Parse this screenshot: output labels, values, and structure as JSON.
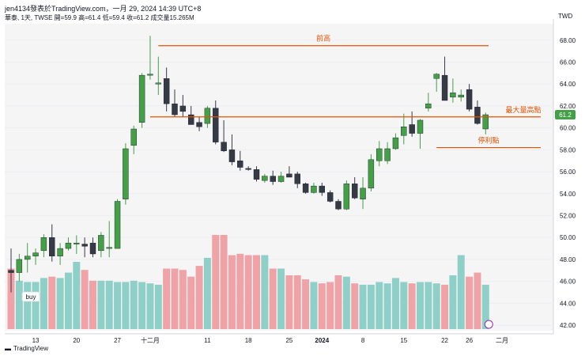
{
  "header": {
    "title": "jen4134發表於TradingView.com，一月 29, 2024 14:39 UTC+8",
    "symbol_line": "華泰, 1天, TWSE  開=59.9  高=61.4  低=59.4  收=61.2  成交量15.265M",
    "currency": "TWD"
  },
  "footer": {
    "brand": "TradingView"
  },
  "chart_data": {
    "type": "candlestick",
    "title": "",
    "symbol": "華泰",
    "interval": "1天",
    "exchange": "TWSE",
    "last": {
      "open": 59.9,
      "high": 61.4,
      "low": 59.4,
      "close": 61.2,
      "volume": "15.265M"
    },
    "ylim": [
      41.5,
      69.5
    ],
    "y_ticks": [
      "42.00",
      "44.00",
      "46.00",
      "48.00",
      "50.00",
      "52.00",
      "54.00",
      "56.00",
      "58.00",
      "60.00",
      "62.00",
      "64.00",
      "66.00",
      "68.00"
    ],
    "x_ticks": [
      "13",
      "20",
      "27",
      "十二月",
      "11",
      "18",
      "25",
      "2024",
      "8",
      "15",
      "22",
      "26",
      "二月"
    ],
    "last_price_label": "61.2",
    "candles": [
      [
        47,
        49,
        45,
        46.8
      ],
      [
        46.8,
        48.5,
        46,
        48
      ],
      [
        48,
        49.5,
        46.8,
        48.3
      ],
      [
        48.3,
        49,
        47.5,
        48.6
      ],
      [
        48.8,
        50.3,
        48.2,
        50
      ],
      [
        50,
        51.2,
        47.8,
        48.3
      ],
      [
        48.3,
        49.5,
        47.5,
        49
      ],
      [
        49,
        50,
        48.8,
        49.5
      ],
      [
        49.4,
        50.2,
        48.5,
        49.5
      ],
      [
        49.4,
        50,
        48.2,
        49.2
      ],
      [
        49.5,
        50,
        48.2,
        48.5
      ],
      [
        48.8,
        50.5,
        48.2,
        50.2
      ],
      [
        49,
        51.5,
        48.2,
        49.1
      ],
      [
        49,
        53.5,
        49,
        53.3
      ],
      [
        53.5,
        58.6,
        53,
        58.1
      ],
      [
        58.4,
        60.2,
        57.6,
        59.9
      ],
      [
        60.5,
        65,
        60,
        64.8
      ],
      [
        64.8,
        68.4,
        64.4,
        64.9
      ],
      [
        64,
        66.5,
        63,
        64.1
      ],
      [
        64.5,
        65.5,
        61.5,
        62.2
      ],
      [
        62.2,
        63.5,
        61,
        61.2
      ],
      [
        62,
        63,
        61,
        61.5
      ],
      [
        61.2,
        62,
        60.3,
        60.3
      ],
      [
        60.5,
        61,
        59.7,
        60.1
      ],
      [
        60.4,
        62,
        60,
        61.8
      ],
      [
        61.8,
        62.5,
        58.5,
        58.7
      ],
      [
        58.7,
        60.7,
        57.8,
        57.9
      ],
      [
        58,
        59.4,
        56.6,
        56.9
      ],
      [
        57,
        57.9,
        56.1,
        56.4
      ],
      [
        56.3,
        56.5,
        56.1,
        56.2
      ],
      [
        56.2,
        56.5,
        55.1,
        55.3
      ],
      [
        55.2,
        55.8,
        55,
        55.6
      ],
      [
        55.6,
        56.1,
        54.8,
        55.1
      ],
      [
        55.1,
        56,
        55,
        55.6
      ],
      [
        55.8,
        56.5,
        55.5,
        55.5
      ],
      [
        55.8,
        56,
        54.5,
        54.9
      ],
      [
        54.9,
        55,
        54,
        54.1
      ],
      [
        54.1,
        55,
        54,
        54.7
      ],
      [
        54.7,
        55,
        53.8,
        54.1
      ],
      [
        54.1,
        54.3,
        53.2,
        53.3
      ],
      [
        53.3,
        53.5,
        52.5,
        52.6
      ],
      [
        52.6,
        55.2,
        52.5,
        54.9
      ],
      [
        54.9,
        55.5,
        53.5,
        53.6
      ],
      [
        53.5,
        55.5,
        52.6,
        54.5
      ],
      [
        54.5,
        57.6,
        54.2,
        57.1
      ],
      [
        57,
        58.8,
        56.5,
        58.1
      ],
      [
        57,
        58.7,
        56.7,
        58.1
      ],
      [
        58.1,
        59.5,
        58,
        59.1
      ],
      [
        59.3,
        61.3,
        58.5,
        60.1
      ],
      [
        60.3,
        61.5,
        59.2,
        59.5
      ],
      [
        59.5,
        60.8,
        58.1,
        60.7
      ],
      [
        61.8,
        63.2,
        61.5,
        62.2
      ],
      [
        64.5,
        65,
        63.3,
        64.9
      ],
      [
        64.8,
        66.5,
        62.5,
        62.5
      ],
      [
        62.8,
        64.5,
        62.3,
        63.2
      ],
      [
        62.8,
        63.5,
        62.4,
        63
      ],
      [
        63.5,
        64,
        61.5,
        61.7
      ],
      [
        61.9,
        62.5,
        60.3,
        60.4
      ],
      [
        59.9,
        61.4,
        59.4,
        61.2
      ]
    ],
    "volume": [
      45,
      36,
      35,
      35,
      38,
      39,
      38,
      42,
      50,
      44,
      36,
      36,
      36,
      35,
      35,
      36,
      35,
      34,
      33,
      45,
      45,
      44,
      39,
      47,
      53,
      70,
      70,
      55,
      56,
      55,
      55,
      55,
      45,
      45,
      40,
      40,
      37,
      35,
      34,
      35,
      40,
      39,
      34,
      33,
      33,
      35,
      34,
      38,
      35,
      34,
      35,
      35,
      34,
      33,
      40,
      55,
      39,
      42,
      33
    ],
    "annotations": [
      {
        "text": "前高",
        "type": "horizontal_ray",
        "y": 67.5,
        "color": "#e65100"
      },
      {
        "text": "最大量高點",
        "type": "horizontal_ray",
        "y": 61.0,
        "color": "#e65100"
      },
      {
        "text": "停利點",
        "type": "horizontal_ray",
        "y": 58.2,
        "color": "#e65100"
      },
      {
        "text": "buy",
        "type": "marker"
      }
    ],
    "colors": {
      "up": "#43a047",
      "down": "#363a45",
      "vol_up": "#8ed0c8",
      "vol_down": "#f0a3a6",
      "line": "#e65100",
      "last": "#43a047"
    }
  }
}
